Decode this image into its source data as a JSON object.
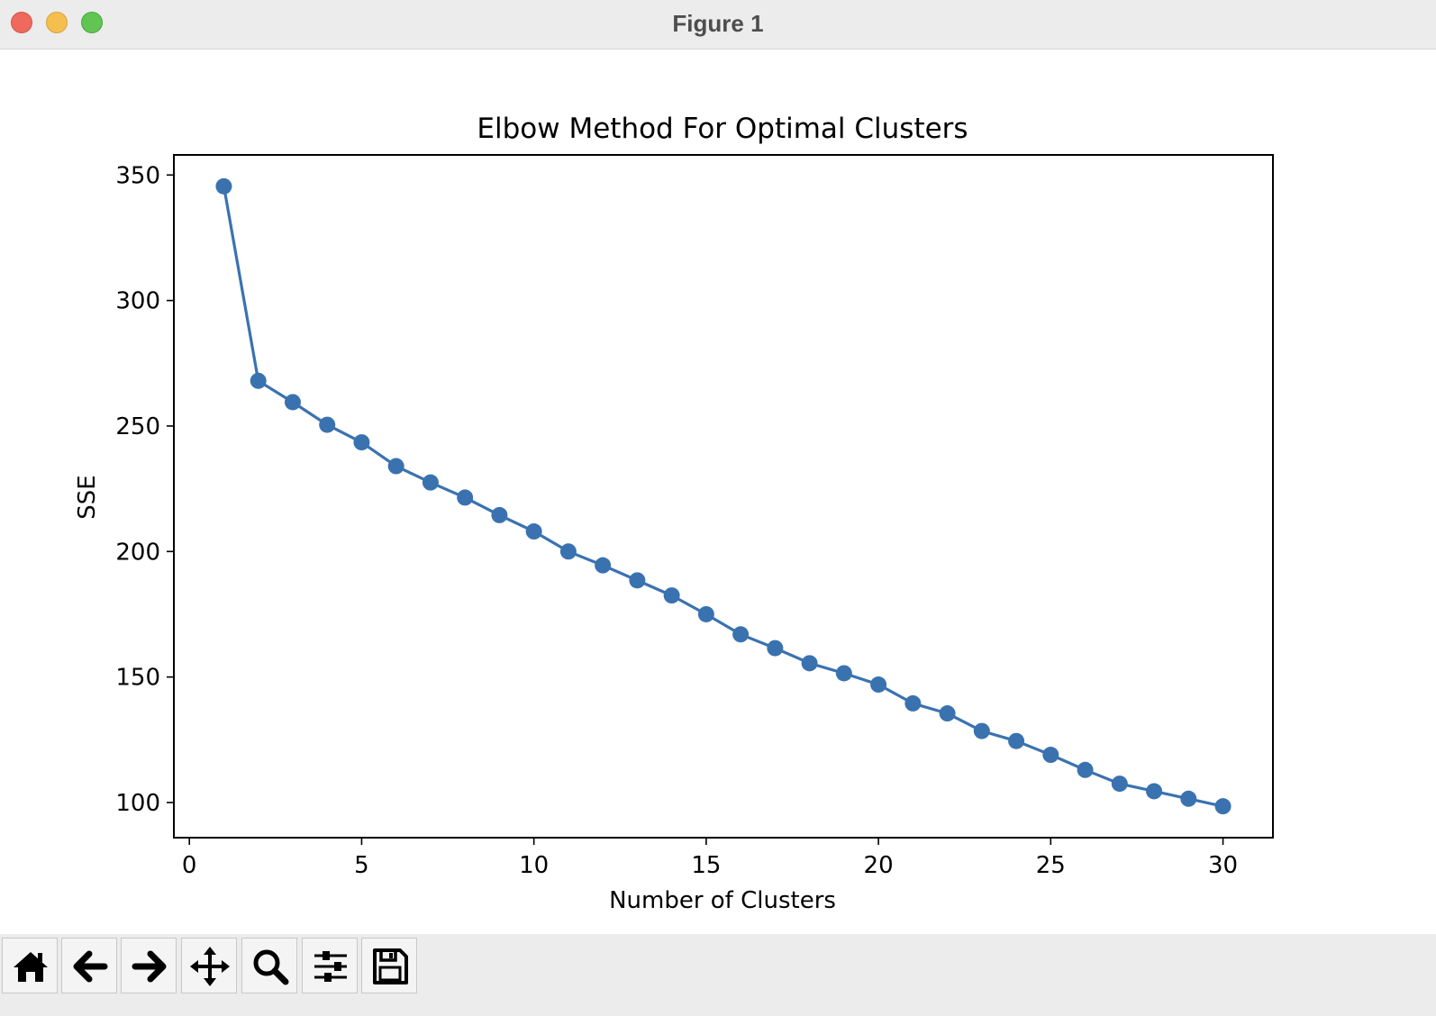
{
  "window": {
    "title": "Figure 1"
  },
  "toolbar": {
    "buttons": [
      {
        "name": "home-button",
        "icon": "home-icon"
      },
      {
        "name": "back-button",
        "icon": "arrow-left-icon"
      },
      {
        "name": "forward-button",
        "icon": "arrow-right-icon"
      },
      {
        "name": "pan-button",
        "icon": "move-icon"
      },
      {
        "name": "zoom-button",
        "icon": "magnifier-icon"
      },
      {
        "name": "configure-subplots-button",
        "icon": "sliders-icon"
      },
      {
        "name": "save-button",
        "icon": "floppy-disk-icon"
      }
    ]
  },
  "chart_data": {
    "type": "line",
    "title": "Elbow Method For Optimal Clusters",
    "xlabel": "Number of Clusters",
    "ylabel": "SSE",
    "xlim": [
      -0.45,
      31.45
    ],
    "ylim": [
      86,
      358
    ],
    "xticks": [
      0,
      5,
      10,
      15,
      20,
      25,
      30
    ],
    "yticks": [
      100,
      150,
      200,
      250,
      300,
      350
    ],
    "grid": false,
    "marker": "circle",
    "color": "#3a72b0",
    "series": [
      {
        "x": [
          1,
          2,
          3,
          4,
          5,
          6,
          7,
          8,
          9,
          10,
          11,
          12,
          13,
          14,
          15,
          16,
          17,
          18,
          19,
          20,
          21,
          22,
          23,
          24,
          25,
          26,
          27,
          28,
          29,
          30
        ],
        "values": [
          345.5,
          268,
          259.5,
          250.5,
          243.5,
          234,
          227.5,
          221.5,
          214.5,
          208,
          200,
          194.5,
          188.5,
          182.5,
          175,
          167,
          161.5,
          155.5,
          151.5,
          147,
          139.5,
          135.5,
          128.5,
          124.5,
          119,
          113,
          107.5,
          104.5,
          101.5,
          98.5
        ]
      }
    ]
  }
}
